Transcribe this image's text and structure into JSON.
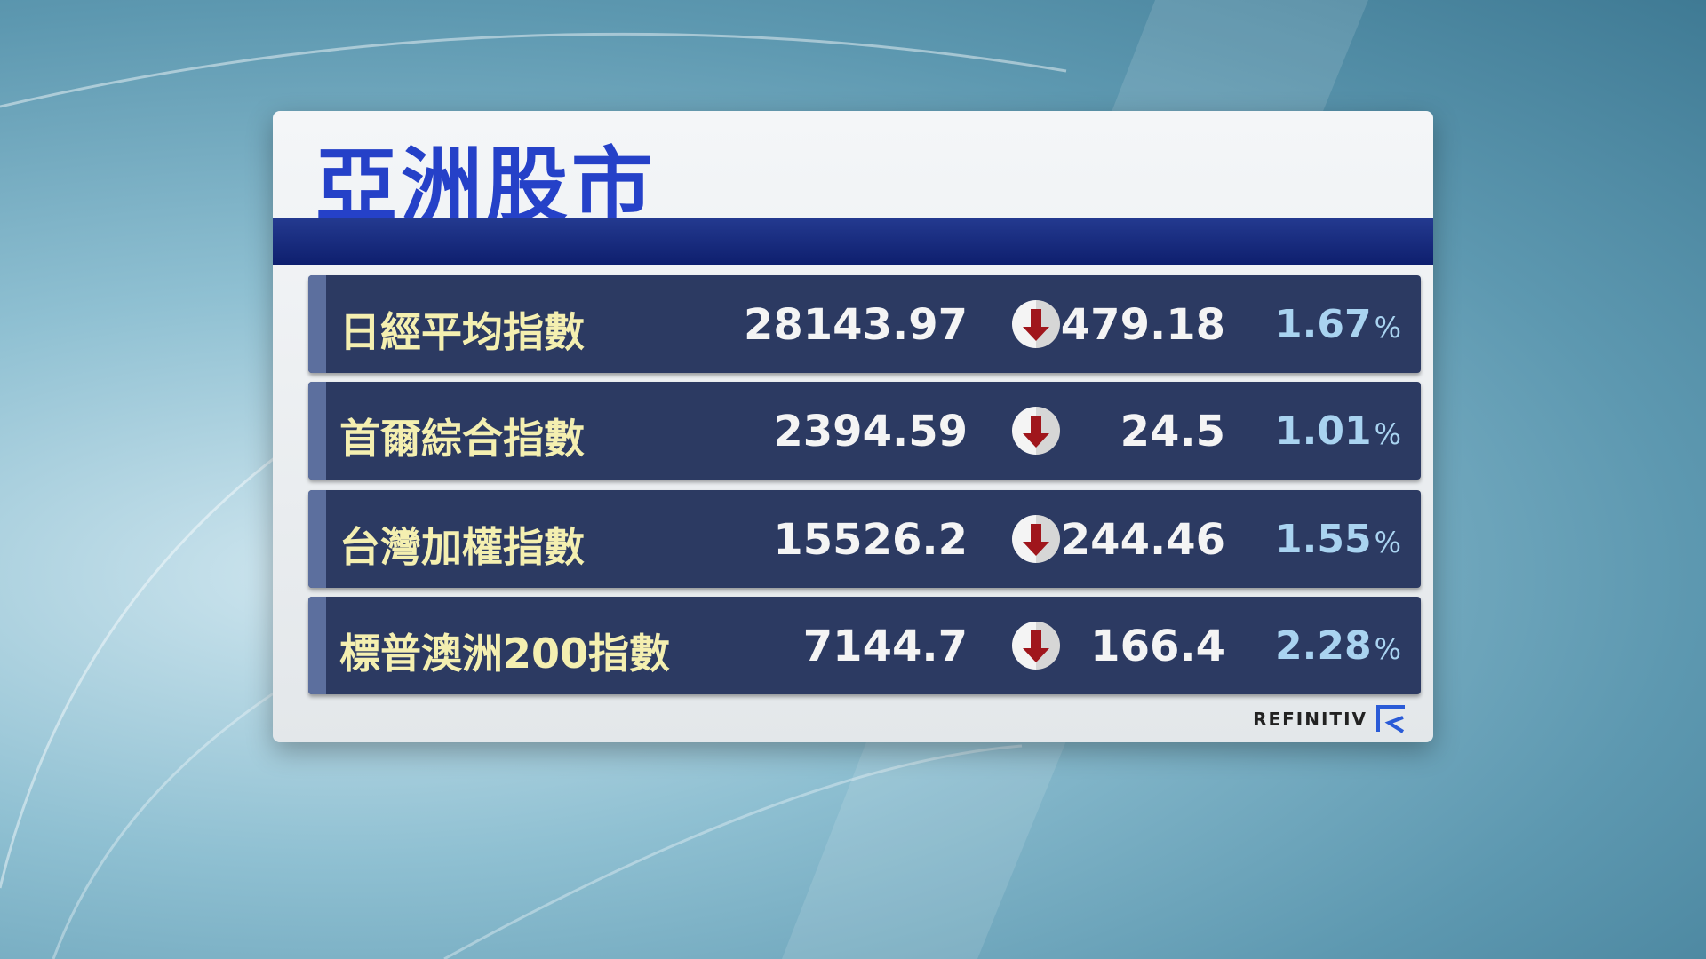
{
  "title": "亞洲股市",
  "rows": [
    {
      "name": "日經平均指數",
      "value": "28143.97",
      "direction": "down",
      "change": "479.18",
      "percent": "1.67",
      "unit": "%"
    },
    {
      "name": "首爾綜合指數",
      "value": "2394.59",
      "direction": "down",
      "change": "24.5",
      "percent": "1.01",
      "unit": "%"
    },
    {
      "name": "台灣加權指數",
      "value": "15526.2",
      "direction": "down",
      "change": "244.46",
      "percent": "1.55",
      "unit": "%"
    },
    {
      "name": "標普澳洲200指數",
      "value": "7144.7",
      "direction": "down",
      "change": "166.4",
      "percent": "2.28",
      "unit": "%"
    }
  ],
  "source": "REFINITIV",
  "colors": {
    "title": "#2541c8",
    "row_bg": "#2c3a62",
    "name": "#f4efb0",
    "percent": "#a9d3f0",
    "down_arrow": "#a0161c"
  }
}
